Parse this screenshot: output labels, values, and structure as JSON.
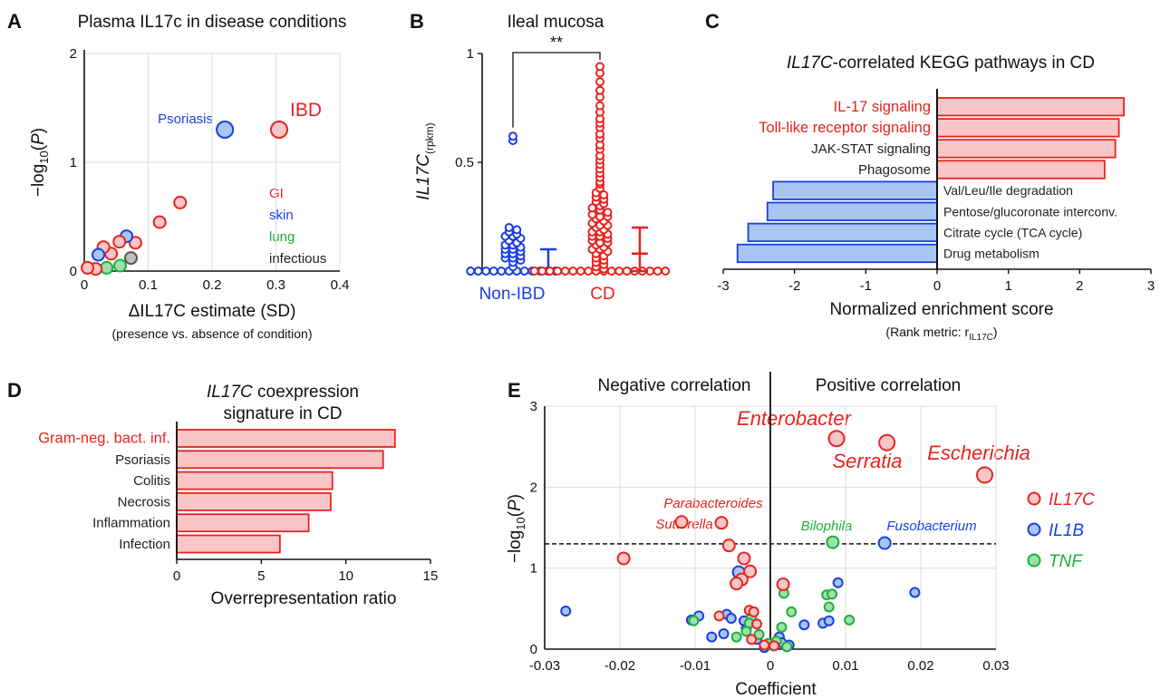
{
  "colors": {
    "red": "#e8231e",
    "red_fill": "#f9c6c8",
    "blue": "#1a3fe0",
    "blue_fill": "#a7c6f2",
    "green": "#1fae3f",
    "green_fill": "#9fe0a8",
    "gray": "#555555",
    "gray_fill": "#bdbdbd"
  },
  "panels": {
    "A": {
      "letter": "A",
      "title": "Plasma IL17c in disease conditions",
      "ylabel_pre": "−log",
      "ylabel_sub": "10",
      "ylabel_mid": "(",
      "ylabel_it": "P",
      "ylabel_post": ")",
      "xlabel": "ΔIL17C estimate (SD)",
      "xsublabel": "(presence vs. absence of condition)",
      "legend": [
        {
          "label": "GI",
          "color": "#e8231e"
        },
        {
          "label": "skin",
          "color": "#1a3fe0"
        },
        {
          "label": "lung",
          "color": "#1fae3f"
        },
        {
          "label": "infectious",
          "color": "#222222"
        }
      ],
      "labels": {
        "psoriasis": "Psoriasis",
        "ibd": "IBD"
      }
    },
    "B": {
      "letter": "B",
      "title": "Ileal mucosa",
      "ylabel": "IL17C",
      "ylabel_sub": "(rpkm)",
      "sig": "**",
      "group1": "Non-IBD",
      "group2": "CD"
    },
    "C": {
      "letter": "C",
      "title_it": "IL17C",
      "title_rest": "-correlated KEGG pathways in CD",
      "xlabel": "Normalized enrichment score",
      "xsub_pre": "(Rank metric: r",
      "xsub_sub": "IL17C",
      "xsub_post": ")"
    },
    "D": {
      "letter": "D",
      "title_it": "IL17C",
      "title_rest": " coexpression",
      "title2": "signature in CD",
      "xlabel": "Overrepresentation ratio"
    },
    "E": {
      "letter": "E",
      "neg": "Negative correlation",
      "pos": "Positive correlation",
      "ylabel_pre": "−log",
      "ylabel_sub": "10",
      "ylabel_mid": "(",
      "ylabel_it": "P",
      "ylabel_post": ")",
      "xlabel": "Coefficient",
      "legend": [
        {
          "label": "IL17C",
          "color": "#e8231e"
        },
        {
          "label": "IL1B",
          "color": "#1a3fe0"
        },
        {
          "label": "TNF",
          "color": "#1fae3f"
        }
      ],
      "labels": [
        {
          "text": "Enterobacter",
          "color": "#e8231e",
          "size": "big"
        },
        {
          "text": "Serratia",
          "color": "#e8231e",
          "size": "big"
        },
        {
          "text": "Escherichia",
          "color": "#e8231e",
          "size": "big"
        },
        {
          "text": "Parabacteroides",
          "color": "#e8231e",
          "size": "small"
        },
        {
          "text": "Sutterella",
          "color": "#e8231e",
          "size": "small"
        },
        {
          "text": "Bilophila",
          "color": "#1fae3f",
          "size": "small"
        },
        {
          "text": "Fusobacterium",
          "color": "#1a3fe0",
          "size": "small"
        }
      ]
    }
  },
  "chart_data": [
    {
      "panel": "A",
      "type": "scatter",
      "title": "Plasma IL17c in disease conditions",
      "xlabel": "ΔIL17C estimate (SD)",
      "ylabel": "−log10(P)",
      "xlim": [
        0,
        0.4
      ],
      "ylim": [
        0,
        2
      ],
      "xticks": [
        "0",
        "0.1",
        "0.2",
        "0.3",
        "0.4"
      ],
      "yticks": [
        "0",
        "1",
        "2"
      ],
      "points": [
        {
          "x": 0.305,
          "y": 1.3,
          "group": "GI",
          "size": "large"
        },
        {
          "x": 0.22,
          "y": 1.3,
          "group": "skin",
          "size": "large"
        },
        {
          "x": 0.15,
          "y": 0.63,
          "group": "GI"
        },
        {
          "x": 0.118,
          "y": 0.45,
          "group": "GI"
        },
        {
          "x": 0.08,
          "y": 0.26,
          "group": "GI"
        },
        {
          "x": 0.066,
          "y": 0.32,
          "group": "skin"
        },
        {
          "x": 0.055,
          "y": 0.27,
          "group": "GI"
        },
        {
          "x": 0.042,
          "y": 0.16,
          "group": "GI"
        },
        {
          "x": 0.03,
          "y": 0.22,
          "group": "GI"
        },
        {
          "x": 0.022,
          "y": 0.15,
          "group": "skin"
        },
        {
          "x": 0.073,
          "y": 0.12,
          "group": "infectious"
        },
        {
          "x": 0.056,
          "y": 0.05,
          "group": "lung"
        },
        {
          "x": 0.035,
          "y": 0.03,
          "group": "lung"
        },
        {
          "x": 0.018,
          "y": 0.02,
          "group": "GI"
        },
        {
          "x": 0.005,
          "y": 0.03,
          "group": "GI"
        }
      ]
    },
    {
      "panel": "B",
      "type": "scatter",
      "title": "Ileal mucosa",
      "ylabel": "IL17C (rpkm)",
      "ylim": [
        0,
        1
      ],
      "yticks": [
        "0",
        "0.5",
        "1"
      ],
      "categories": [
        "Non-IBD",
        "CD"
      ],
      "series": [
        {
          "name": "Non-IBD",
          "values": [
            0.62,
            0.6,
            0.2,
            0.19,
            0.18,
            0.17,
            0.16,
            0.16,
            0.15,
            0.14,
            0.13,
            0.12,
            0.12,
            0.11,
            0.1,
            0.1,
            0.09,
            0.08,
            0.08,
            0.07,
            0.06,
            0.06,
            0.05,
            0.04,
            0.02,
            0,
            0,
            0,
            0,
            0,
            0,
            0,
            0,
            0,
            0,
            0,
            0
          ],
          "summary": {
            "center": 0,
            "low": 0,
            "high": 0.1
          }
        },
        {
          "name": "CD",
          "values": [
            0.94,
            0.91,
            0.87,
            0.83,
            0.8,
            0.76,
            0.73,
            0.7,
            0.68,
            0.66,
            0.63,
            0.61,
            0.58,
            0.56,
            0.53,
            0.51,
            0.49,
            0.47,
            0.45,
            0.43,
            0.41,
            0.4,
            0.38,
            0.36,
            0.35,
            0.34,
            0.33,
            0.32,
            0.31,
            0.3,
            0.29,
            0.28,
            0.27,
            0.26,
            0.25,
            0.25,
            0.24,
            0.23,
            0.22,
            0.21,
            0.21,
            0.2,
            0.19,
            0.18,
            0.18,
            0.17,
            0.16,
            0.16,
            0.15,
            0.14,
            0.13,
            0.13,
            0.12,
            0.11,
            0.1,
            0.1,
            0.09,
            0.08,
            0.07,
            0.06,
            0.05,
            0.04,
            0.03,
            0.02,
            0.01,
            0,
            0,
            0,
            0,
            0,
            0,
            0,
            0,
            0,
            0,
            0,
            0,
            0,
            0,
            0,
            0,
            0,
            0
          ],
          "summary": {
            "center": 0.08,
            "low": 0,
            "high": 0.2
          }
        }
      ]
    },
    {
      "panel": "C",
      "type": "bar",
      "orientation": "horizontal",
      "title": "IL17C-correlated KEGG pathways in CD",
      "xlabel": "Normalized enrichment score",
      "xlim": [
        -3,
        3
      ],
      "xticks": [
        "-3",
        "-2",
        "-1",
        "0",
        "1",
        "2",
        "3"
      ],
      "categories": [
        "IL-17 signaling",
        "Toll-like receptor signaling",
        "JAK-STAT signaling",
        "Phagosome",
        "Val/Leu/Ile degradation",
        "Pentose/glucoronate interconv.",
        "Citrate cycle (TCA cycle)",
        "Drug metabolism"
      ],
      "values": [
        2.62,
        2.55,
        2.5,
        2.35,
        -2.3,
        -2.38,
        -2.65,
        -2.8
      ],
      "label_colors": [
        "#e8231e",
        "#e8231e",
        "#222222",
        "#222222",
        "#222222",
        "#222222",
        "#222222",
        "#222222"
      ]
    },
    {
      "panel": "D",
      "type": "bar",
      "orientation": "horizontal",
      "title": "IL17C coexpression signature in CD",
      "xlabel": "Overrepresentation ratio",
      "xlim": [
        0,
        15
      ],
      "xticks": [
        "0",
        "5",
        "10",
        "15"
      ],
      "categories": [
        "Gram-neg. bact. inf.",
        "Psoriasis",
        "Colitis",
        "Necrosis",
        "Inflammation",
        "Infection"
      ],
      "values": [
        12.9,
        12.2,
        9.2,
        9.1,
        7.8,
        6.1
      ],
      "label_colors": [
        "#e8231e",
        "#222222",
        "#222222",
        "#222222",
        "#222222",
        "#222222"
      ]
    },
    {
      "panel": "E",
      "type": "scatter",
      "xlabel": "Coefficient",
      "ylabel": "−log10(P)",
      "xlim": [
        -0.03,
        0.03
      ],
      "ylim": [
        0,
        3
      ],
      "threshold": 1.3,
      "xticks": [
        "-0.03",
        "-0.02",
        "-0.01",
        "0",
        "0.01",
        "0.02",
        "0.03"
      ],
      "yticks": [
        "0",
        "1",
        "2",
        "3"
      ],
      "series": [
        {
          "name": "IL17C",
          "points": [
            [
              0.0088,
              2.6,
              "L"
            ],
            [
              0.0155,
              2.55,
              "L"
            ],
            [
              0.0285,
              2.15,
              "L"
            ],
            [
              -0.0065,
              1.56,
              "M"
            ],
            [
              -0.0118,
              1.57,
              "M"
            ],
            [
              -0.0195,
              1.12,
              "M"
            ],
            [
              -0.0055,
              1.28,
              "M"
            ],
            [
              -0.0035,
              1.12,
              "M"
            ],
            [
              -0.0027,
              0.96,
              "M"
            ],
            [
              -0.0038,
              0.86,
              "M"
            ],
            [
              -0.0045,
              0.81,
              "M"
            ],
            [
              0.0017,
              0.8,
              "M"
            ],
            [
              -0.0068,
              0.41,
              "S"
            ],
            [
              -0.0028,
              0.48,
              "S"
            ],
            [
              -0.0022,
              0.46,
              "S"
            ],
            [
              -0.0018,
              0.31,
              "S"
            ],
            [
              -0.0025,
              0.12,
              "S"
            ],
            [
              -0.0008,
              0.05,
              "S"
            ],
            [
              0.0005,
              0.04,
              "S"
            ]
          ]
        },
        {
          "name": "IL1B",
          "points": [
            [
              0.0152,
              1.31,
              "M"
            ],
            [
              -0.0042,
              0.95,
              "M"
            ],
            [
              -0.0272,
              0.47,
              "S"
            ],
            [
              0.0192,
              0.7,
              "S"
            ],
            [
              0.009,
              0.82,
              "S"
            ],
            [
              -0.0095,
              0.41,
              "S"
            ],
            [
              -0.0105,
              0.36,
              "S"
            ],
            [
              -0.0058,
              0.43,
              "S"
            ],
            [
              -0.0052,
              0.38,
              "S"
            ],
            [
              -0.0035,
              0.35,
              "S"
            ],
            [
              -0.0032,
              0.25,
              "S"
            ],
            [
              -0.0078,
              0.15,
              "S"
            ],
            [
              -0.0062,
              0.19,
              "S"
            ],
            [
              0.0045,
              0.3,
              "S"
            ],
            [
              0.007,
              0.32,
              "S"
            ],
            [
              0.0078,
              0.35,
              "S"
            ],
            [
              -0.0018,
              0.12,
              "S"
            ],
            [
              0.0012,
              0.15,
              "S"
            ],
            [
              0.0025,
              0.05,
              "S"
            ],
            [
              -0.0008,
              0.02,
              "S"
            ],
            [
              0.0015,
              0.08,
              "S"
            ]
          ]
        },
        {
          "name": "TNF",
          "points": [
            [
              0.0083,
              1.32,
              "M"
            ],
            [
              0.0075,
              0.67,
              "S"
            ],
            [
              0.0082,
              0.68,
              "S"
            ],
            [
              0.0078,
              0.52,
              "S"
            ],
            [
              0.0018,
              0.69,
              "S"
            ],
            [
              0.0028,
              0.46,
              "S"
            ],
            [
              0.0105,
              0.36,
              "S"
            ],
            [
              -0.0025,
              0.4,
              "S"
            ],
            [
              -0.0028,
              0.32,
              "S"
            ],
            [
              -0.0032,
              0.22,
              "S"
            ],
            [
              -0.0015,
              0.18,
              "S"
            ],
            [
              -0.0045,
              0.15,
              "S"
            ],
            [
              -0.0102,
              0.35,
              "S"
            ],
            [
              0.0015,
              0.27,
              "S"
            ],
            [
              0.0008,
              0.1,
              "S"
            ],
            [
              0.0002,
              0.05,
              "S"
            ],
            [
              -0.0003,
              0.07,
              "S"
            ],
            [
              0.0022,
              0.03,
              "S"
            ]
          ]
        }
      ]
    }
  ]
}
